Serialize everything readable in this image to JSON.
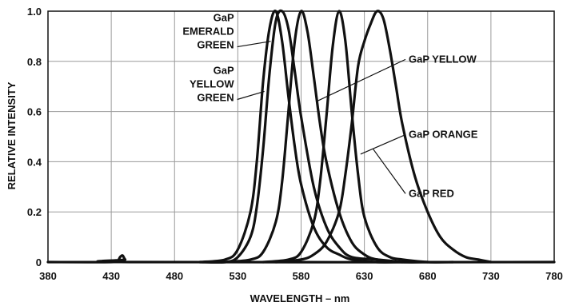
{
  "chart_data": {
    "type": "line",
    "xlabel": "WAVELENGTH – nm",
    "ylabel": "RELATIVE INTENSITY",
    "xlim": [
      380,
      780
    ],
    "ylim": [
      0,
      1.0
    ],
    "xticks": [
      "380",
      "430",
      "480",
      "530",
      "580",
      "630",
      "680",
      "730",
      "780"
    ],
    "yticks": [
      "0",
      "0.2",
      "0.4",
      "0.6",
      "0.8",
      "1.0"
    ],
    "grid": true,
    "line_color": "#111111",
    "series": [
      {
        "name": "GaP EMERALD GREEN",
        "x": [
          500,
          520,
          530,
          540,
          545,
          550,
          555,
          560,
          565,
          570,
          575,
          580,
          590,
          600,
          610,
          620,
          640,
          660
        ],
        "y": [
          0.0,
          0.01,
          0.05,
          0.2,
          0.4,
          0.72,
          0.93,
          1.0,
          0.88,
          0.66,
          0.46,
          0.31,
          0.14,
          0.06,
          0.03,
          0.01,
          0.0,
          0.0
        ]
      },
      {
        "name": "GaP YELLOW GREEN",
        "x": [
          500,
          520,
          530,
          540,
          545,
          550,
          555,
          560,
          565,
          570,
          575,
          580,
          590,
          600,
          610,
          620,
          640,
          660
        ],
        "y": [
          0.0,
          0.0,
          0.02,
          0.1,
          0.22,
          0.45,
          0.75,
          0.96,
          1.0,
          0.93,
          0.76,
          0.58,
          0.3,
          0.14,
          0.06,
          0.02,
          0.01,
          0.0
        ]
      },
      {
        "name": "GaP YELLOW",
        "x": [
          520,
          540,
          550,
          560,
          565,
          570,
          575,
          580,
          585,
          590,
          595,
          600,
          610,
          620,
          630,
          640,
          660,
          680
        ],
        "y": [
          0.0,
          0.01,
          0.04,
          0.16,
          0.32,
          0.6,
          0.88,
          1.0,
          0.92,
          0.74,
          0.55,
          0.4,
          0.2,
          0.08,
          0.03,
          0.01,
          0.0,
          0.0
        ]
      },
      {
        "name": "GaP ORANGE",
        "x": [
          550,
          570,
          580,
          590,
          595,
          600,
          605,
          610,
          615,
          620,
          625,
          630,
          640,
          650,
          660,
          680,
          700
        ],
        "y": [
          0.0,
          0.01,
          0.04,
          0.16,
          0.32,
          0.58,
          0.86,
          1.0,
          0.88,
          0.6,
          0.35,
          0.18,
          0.06,
          0.02,
          0.01,
          0.0,
          0.0
        ]
      },
      {
        "name": "GaP RED",
        "x": [
          560,
          580,
          590,
          600,
          610,
          615,
          620,
          625,
          630,
          635,
          640,
          645,
          650,
          655,
          660,
          670,
          680,
          690,
          700,
          710,
          720,
          730
        ],
        "y": [
          0.0,
          0.01,
          0.03,
          0.08,
          0.2,
          0.35,
          0.55,
          0.78,
          0.88,
          0.95,
          1.0,
          0.97,
          0.85,
          0.7,
          0.55,
          0.34,
          0.2,
          0.1,
          0.05,
          0.02,
          0.01,
          0.0
        ]
      },
      {
        "name": "",
        "x": [
          380,
          430,
          435,
          437,
          439,
          441,
          445,
          780
        ],
        "y": [
          0.0,
          0.0,
          0.005,
          0.02,
          0.026,
          0.01,
          0.0,
          0.0
        ]
      }
    ],
    "annotations": [
      {
        "lines": [
          "GaP",
          "EMERALD",
          "GREEN"
        ],
        "anchor": "end",
        "x": 527,
        "y": 0.96,
        "target": [
          556,
          0.88
        ]
      },
      {
        "lines": [
          "GaP",
          "YELLOW",
          "GREEN"
        ],
        "anchor": "end",
        "x": 527,
        "y": 0.75,
        "target": [
          551,
          0.68
        ]
      },
      {
        "lines": [
          "GaP YELLOW"
        ],
        "anchor": "start",
        "x": 665,
        "y": 0.795,
        "target": [
          592,
          0.64
        ]
      },
      {
        "lines": [
          "GaP ORANGE"
        ],
        "anchor": "start",
        "x": 665,
        "y": 0.495,
        "target": [
          627,
          0.43
        ]
      },
      {
        "lines": [
          "GaP RED"
        ],
        "anchor": "start",
        "x": 665,
        "y": 0.26,
        "target": [
          637,
          0.45
        ]
      }
    ]
  }
}
